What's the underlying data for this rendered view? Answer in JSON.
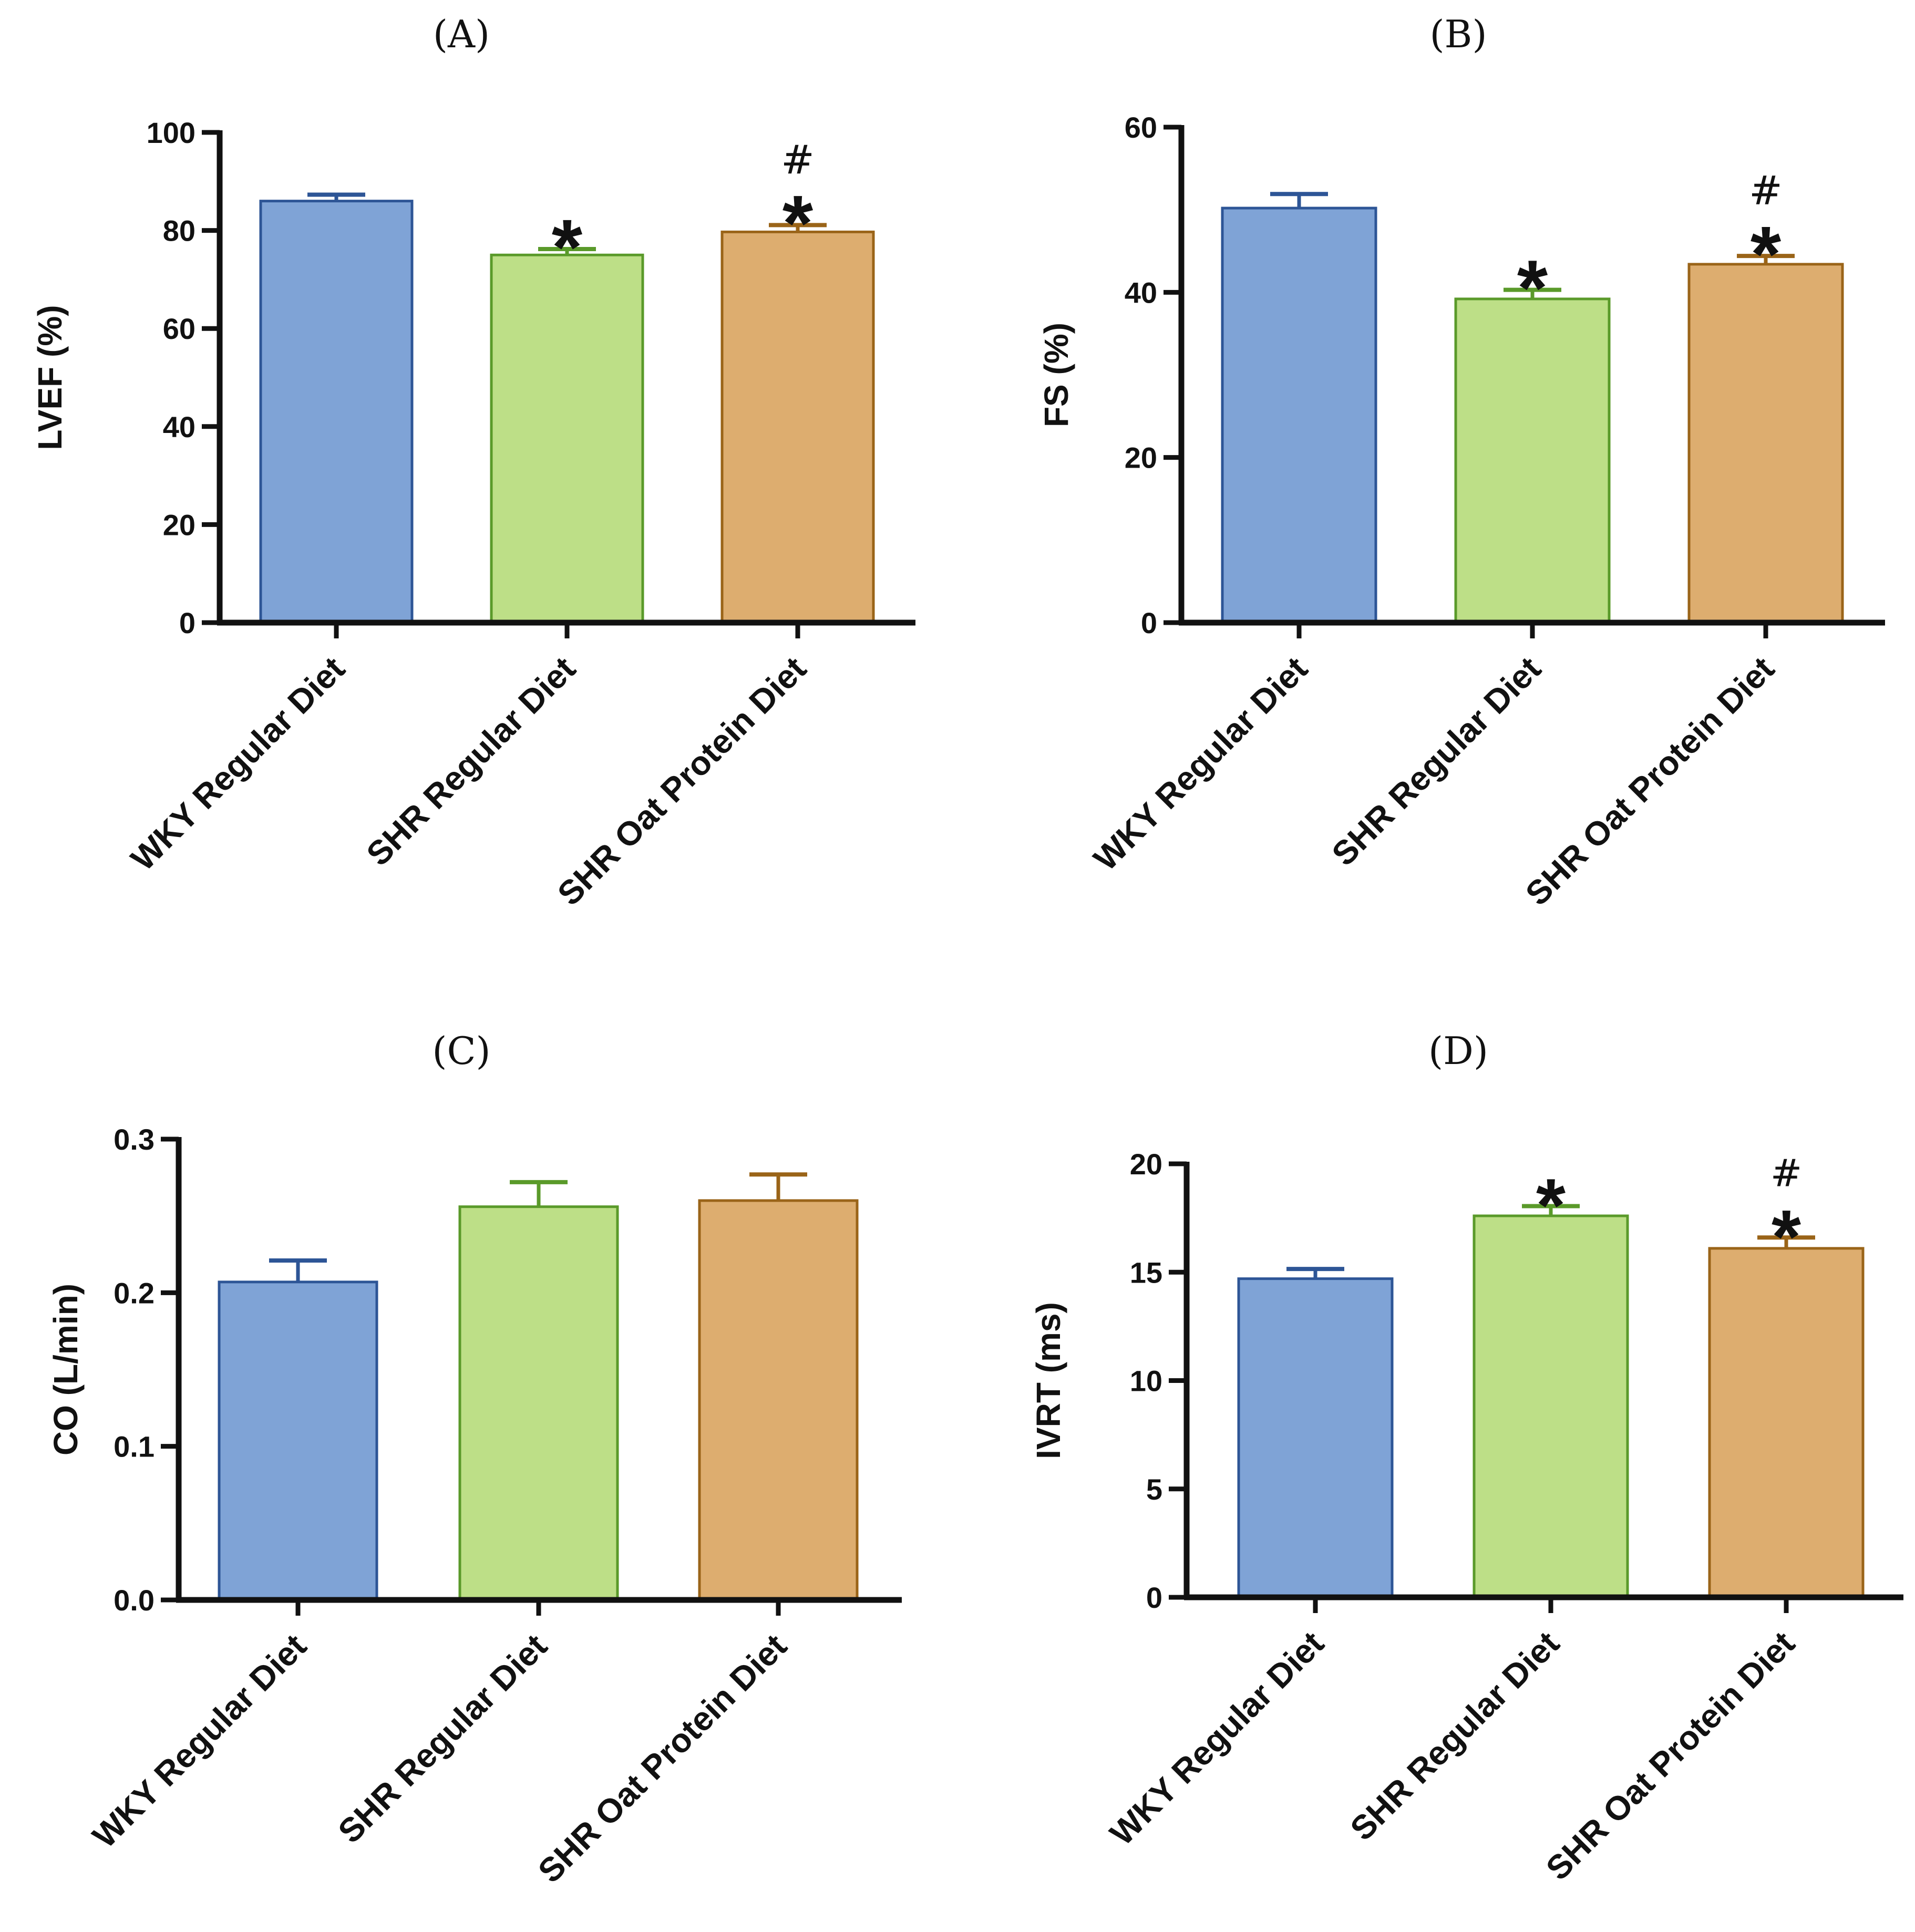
{
  "chart_data": [
    {
      "type": "bar",
      "panel_title": "(A)",
      "ylabel": "LVEF (%)",
      "categories": [
        "WKY Regular Diet",
        "SHR Regular Diet",
        "SHR Oat Protein Diet"
      ],
      "values": [
        86,
        75,
        79.7
      ],
      "errors": [
        1.3,
        1.2,
        1.4
      ],
      "colors": [
        "#7fa3d6",
        "#bddf87",
        "#ddad6f"
      ],
      "edge_colors": [
        "#2d5596",
        "#5a9a2a",
        "#9a6418"
      ],
      "ylim": [
        0,
        100
      ],
      "yticks": [
        0,
        20,
        40,
        60,
        80,
        100
      ],
      "ytick_labels": [
        "0",
        "20",
        "40",
        "60",
        "80",
        "100"
      ],
      "annotations": [
        [],
        [
          "*"
        ],
        [
          "*",
          "#"
        ]
      ]
    },
    {
      "type": "bar",
      "panel_title": "(B)",
      "ylabel": "FS (%)",
      "categories": [
        "WKY Regular Diet",
        "SHR Regular Diet",
        "SHR Oat Protein Diet"
      ],
      "values": [
        50.2,
        39.2,
        43.4
      ],
      "errors": [
        1.7,
        1.1,
        1.0
      ],
      "colors": [
        "#7fa3d6",
        "#bddf87",
        "#ddad6f"
      ],
      "edge_colors": [
        "#2d5596",
        "#5a9a2a",
        "#9a6418"
      ],
      "ylim": [
        0,
        60
      ],
      "yticks": [
        0,
        20,
        40,
        60
      ],
      "ytick_labels": [
        "0",
        "20",
        "40",
        "60"
      ],
      "annotations": [
        [],
        [
          "*"
        ],
        [
          "*",
          "#"
        ]
      ]
    },
    {
      "type": "bar",
      "panel_title": "(C)",
      "ylabel": "CO (L/min)",
      "categories": [
        "WKY Regular Diet",
        "SHR Regular Diet",
        "SHR Oat Protein Diet"
      ],
      "values": [
        0.207,
        0.256,
        0.26
      ],
      "errors": [
        0.014,
        0.016,
        0.017
      ],
      "colors": [
        "#7fa3d6",
        "#bddf87",
        "#ddad6f"
      ],
      "edge_colors": [
        "#2d5596",
        "#5a9a2a",
        "#9a6418"
      ],
      "ylim": [
        0,
        0.3
      ],
      "yticks": [
        0,
        0.1,
        0.2,
        0.3
      ],
      "ytick_labels": [
        "0.0",
        "0.1",
        "0.2",
        "0.3"
      ],
      "annotations": [
        [],
        [],
        []
      ]
    },
    {
      "type": "bar",
      "panel_title": "(D)",
      "ylabel": "IVRT (ms)",
      "categories": [
        "WKY Regular Diet",
        "SHR Regular Diet",
        "SHR Oat Protein Diet"
      ],
      "values": [
        14.7,
        17.6,
        16.1
      ],
      "errors": [
        0.45,
        0.45,
        0.5
      ],
      "colors": [
        "#7fa3d6",
        "#bddf87",
        "#ddad6f"
      ],
      "edge_colors": [
        "#2d5596",
        "#5a9a2a",
        "#9a6418"
      ],
      "ylim": [
        0,
        20
      ],
      "yticks": [
        0,
        5,
        10,
        15,
        20
      ],
      "ytick_labels": [
        "0",
        "5",
        "10",
        "15",
        "20"
      ],
      "annotations": [
        [],
        [
          "*"
        ],
        [
          "*",
          "#"
        ]
      ]
    }
  ]
}
